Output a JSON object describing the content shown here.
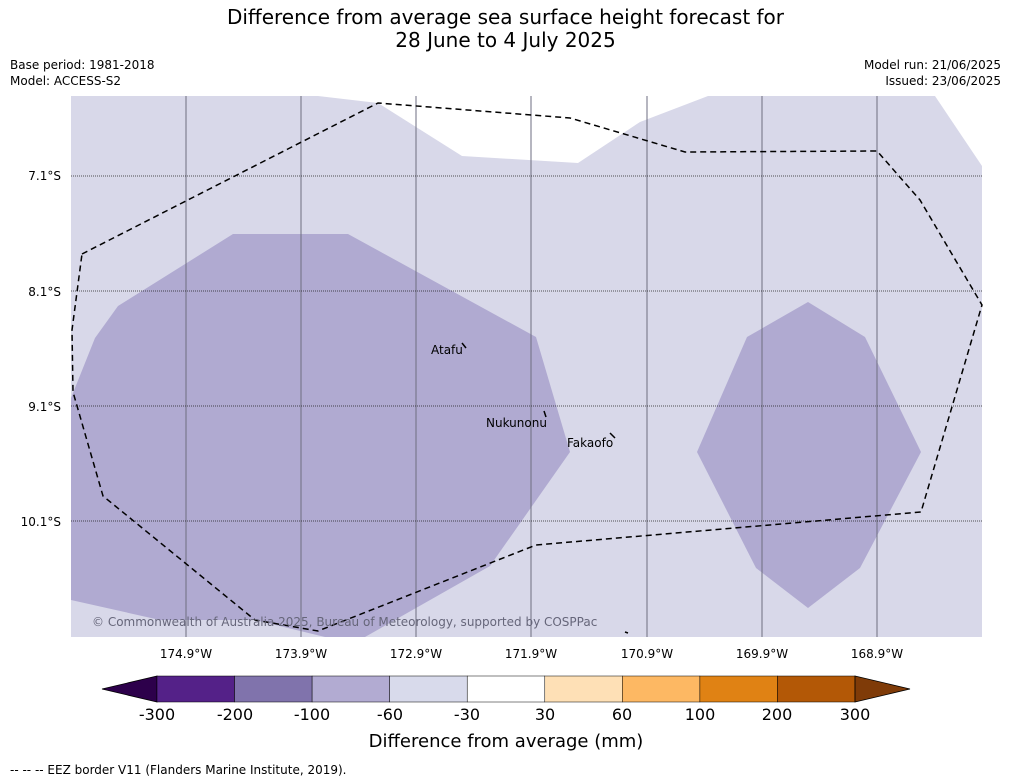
{
  "title": {
    "line1": "Difference from average sea surface height forecast for",
    "line2": "28 June to 4 July 2025"
  },
  "meta": {
    "base_period": "Base period: 1981-2018",
    "model": "Model: ACCESS-S2",
    "model_run": "Model run: 21/06/2025",
    "issued": "Issued: 23/06/2025"
  },
  "map": {
    "latitude_labels": [
      "7.1°S",
      "8.1°S",
      "9.1°S",
      "10.1°S"
    ],
    "longitude_labels": [
      "174.9°W",
      "173.9°W",
      "172.9°W",
      "171.9°W",
      "170.9°W",
      "169.9°W",
      "168.9°W"
    ],
    "places": [
      "Atafu",
      "Nukunonu",
      "Fakaofo"
    ],
    "copyright": "© Commonwealth of Australia 2025, Bureau of Meteorology, supported by COSPPac",
    "colors": {
      "background_field": "#d8d8e9",
      "negative_anomaly": "#b0aad1",
      "positive_neutral": "#ffffff"
    }
  },
  "colorbar": {
    "label": "Difference from average (mm)",
    "ticks": [
      "-300",
      "-200",
      "-100",
      "-60",
      "-30",
      "30",
      "60",
      "100",
      "200",
      "300"
    ],
    "colors": [
      "#2d004b",
      "#542188",
      "#8073ac",
      "#b2abd2",
      "#d8daeb",
      "#ffffff",
      "#fee0b6",
      "#fdb863",
      "#e08214",
      "#b35806",
      "#7f3b08"
    ]
  },
  "footer": "-- -- -- EEZ border V11 (Flanders Marine Institute, 2019)."
}
